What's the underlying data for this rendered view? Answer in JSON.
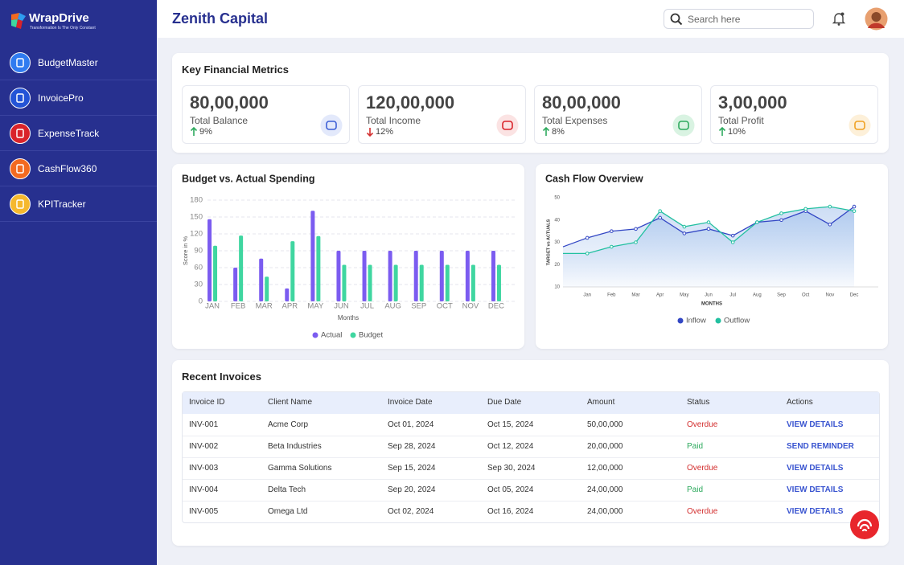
{
  "brand": {
    "name": "WrapDrive",
    "tagline": "Transformation Is The Only Constant"
  },
  "nav": [
    {
      "label": "BudgetMaster",
      "color": "#2f7bf0"
    },
    {
      "label": "InvoicePro",
      "color": "#2454d6"
    },
    {
      "label": "ExpenseTrack",
      "color": "#d9232a"
    },
    {
      "label": "CashFlow360",
      "color": "#f26a21"
    },
    {
      "label": "KPITracker",
      "color": "#f5b82e"
    }
  ],
  "header": {
    "title": "Zenith Capital",
    "search_placeholder": "Search here"
  },
  "metrics": {
    "title": "Key Financial Metrics",
    "cards": [
      {
        "value": "80,00,000",
        "label": "Total Balance",
        "change": "9%",
        "trend": "up",
        "color": "#3d5fd6",
        "bg": "#e3e9fb"
      },
      {
        "value": "120,00,000",
        "label": "Total Income",
        "change": "12%",
        "trend": "down",
        "color": "#d9232a",
        "bg": "#fbe3e3"
      },
      {
        "value": "80,00,000",
        "label": "Total Expenses",
        "change": "8%",
        "trend": "up",
        "color": "#2eaa5e",
        "bg": "#d9f3e2"
      },
      {
        "value": "3,00,000",
        "label": "Total Profit",
        "change": "10%",
        "trend": "up",
        "color": "#f0a020",
        "bg": "#fdf0d9"
      }
    ]
  },
  "chart_data": [
    {
      "type": "bar",
      "title": "Budget vs. Actual Spending",
      "x_label": "Months",
      "y_label": "Score in %",
      "categories": [
        "JAN",
        "FEB",
        "MAR",
        "APR",
        "MAY",
        "JUN",
        "JUL",
        "AUG",
        "SEP",
        "OCT",
        "NOV",
        "DEC"
      ],
      "series": [
        {
          "name": "Actual",
          "color": "#7b5cf0",
          "values": [
            146,
            60,
            76,
            23,
            161,
            90,
            90,
            90,
            90,
            90,
            90,
            90
          ]
        },
        {
          "name": "Budget",
          "color": "#3fd6a0",
          "values": [
            99,
            117,
            44,
            107,
            116,
            65,
            65,
            65,
            65,
            65,
            65,
            65
          ]
        }
      ],
      "ylim": [
        0,
        180
      ],
      "yticks": [
        0,
        30,
        60,
        90,
        120,
        150,
        180
      ],
      "grid": true,
      "legend": "bottom"
    },
    {
      "type": "line",
      "title": "Cash Flow Overview",
      "x_label": "MONTHS",
      "y_label": "TARGET vs ACTUALS",
      "categories": [
        null,
        "Jan",
        "Feb",
        "Mar",
        "Apr",
        "May",
        "Jun",
        "Jul",
        "Aug",
        "Sep",
        "Oct",
        "Nov",
        "Dec"
      ],
      "series": [
        {
          "name": "Inflow",
          "color": "#3347c4",
          "values": [
            28,
            32,
            35,
            36,
            41,
            34,
            36,
            33,
            39,
            40,
            44,
            38,
            46
          ]
        },
        {
          "name": "Outflow",
          "color": "#22c0a0",
          "values": [
            25,
            25,
            28,
            30,
            44,
            37,
            39,
            30,
            39,
            43,
            45,
            46,
            44
          ]
        }
      ],
      "ylim": [
        10,
        50
      ],
      "yticks": [
        10,
        20,
        30,
        40,
        50
      ],
      "grid": false,
      "legend": "bottom"
    }
  ],
  "invoices": {
    "title": "Recent Invoices",
    "columns": [
      "Invoice ID",
      "Client Name",
      "Invoice Date",
      "Due Date",
      "Amount",
      "Status",
      "Actions"
    ],
    "rows": [
      [
        "INV-001",
        "Acme Corp",
        "Oct 01, 2024",
        "Oct 15, 2024",
        "50,00,000",
        "Overdue",
        "VIEW DETAILS"
      ],
      [
        "INV-002",
        "Beta Industries",
        "Sep 28, 2024",
        "Oct 12, 2024",
        "20,00,000",
        "Paid",
        "SEND REMINDER"
      ],
      [
        "INV-003",
        "Gamma Solutions",
        "Sep 15, 2024",
        "Sep 30, 2024",
        "12,00,000",
        "Overdue",
        "VIEW DETAILS"
      ],
      [
        "INV-004",
        "Delta Tech",
        "Sep 20, 2024",
        "Oct 05, 2024",
        "24,00,000",
        "Paid",
        "VIEW DETAILS"
      ],
      [
        "INV-005",
        "Omega Ltd",
        "Oct 02, 2024",
        "Oct 16, 2024",
        "24,00,000",
        "Overdue",
        "VIEW DETAILS"
      ]
    ],
    "status_colors": [
      "#d32f2f",
      "#2eaa5e",
      "#d32f2f",
      "#2eaa5e",
      "#d32f2f"
    ]
  }
}
